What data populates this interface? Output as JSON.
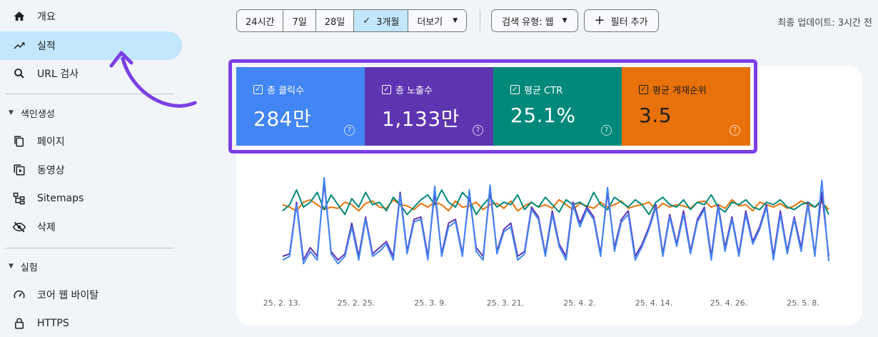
{
  "sidebar": {
    "items": [
      {
        "label": "개요",
        "icon": "home-icon"
      },
      {
        "label": "실적",
        "icon": "trending-up-icon"
      },
      {
        "label": "URL 검사",
        "icon": "search-icon"
      }
    ],
    "sections": [
      {
        "title": "색인생성",
        "items": [
          {
            "label": "페이지",
            "icon": "pages-icon"
          },
          {
            "label": "동영상",
            "icon": "video-icon"
          },
          {
            "label": "Sitemaps",
            "icon": "sitemap-icon"
          },
          {
            "label": "삭제",
            "icon": "visibility-off-icon"
          }
        ]
      },
      {
        "title": "실험",
        "items": [
          {
            "label": "코어 웹 바이탈",
            "icon": "speed-icon"
          },
          {
            "label": "HTTPS",
            "icon": "lock-icon"
          }
        ]
      }
    ]
  },
  "toolbar": {
    "ranges": [
      "24시간",
      "7일",
      "28일",
      "3개월"
    ],
    "selected_range": "3개월",
    "more": "더보기",
    "search_type": "검색 유형: 웹",
    "add_filter": "필터 추가",
    "updated": "최종 업데이트: 3시간 전"
  },
  "metrics": [
    {
      "label": "총 클릭수",
      "value": "284만",
      "color": "#4285f4"
    },
    {
      "label": "총 노출수",
      "value": "1,133만",
      "color": "#5e35b1"
    },
    {
      "label": "평균 CTR",
      "value": "25.1%",
      "color": "#00897b"
    },
    {
      "label": "평균 게재순위",
      "value": "3.5",
      "color": "#e8710a"
    }
  ],
  "colors": {
    "highlight": "#7b3fe4",
    "arrow": "#7b3fe4",
    "active_nav": "#c2e7ff"
  },
  "chart_data": {
    "type": "line",
    "x_labels": [
      "25. 2. 13.",
      "25. 2. 25.",
      "25. 3. 9.",
      "25. 3. 21.",
      "25. 4. 2.",
      "25. 4. 14.",
      "25. 4. 26.",
      "25. 5. 8."
    ],
    "series": [
      {
        "color": "#e8710a",
        "values": [
          60,
          58,
          55,
          62,
          64,
          60,
          56,
          58,
          57,
          62,
          60,
          55,
          61,
          63,
          58,
          57,
          64,
          60,
          59,
          56,
          61,
          58,
          62,
          60,
          55,
          63,
          58,
          59,
          62,
          56,
          60,
          61,
          57,
          63,
          55,
          59,
          62,
          58,
          60,
          57,
          64,
          60,
          56,
          61,
          59,
          57,
          62,
          58,
          60,
          63,
          57,
          59,
          60,
          62,
          56,
          61,
          58,
          60,
          59,
          57,
          62,
          63,
          58,
          60,
          57,
          64,
          59,
          60,
          55,
          62,
          60,
          58,
          61,
          57,
          59,
          63,
          60,
          58,
          62,
          56
        ]
      },
      {
        "color": "#00897b",
        "values": [
          55,
          60,
          72,
          58,
          62,
          70,
          56,
          68,
          60,
          52,
          65,
          58,
          70,
          60,
          62,
          55,
          66,
          60,
          52,
          58,
          64,
          68,
          60,
          72,
          62,
          58,
          70,
          64,
          52,
          60,
          66,
          58,
          62,
          60,
          68,
          56,
          62,
          58,
          66,
          60,
          54,
          64,
          60,
          62,
          58,
          70,
          60,
          56,
          66,
          62,
          58,
          64,
          60,
          52,
          62,
          66,
          60,
          58,
          64,
          56,
          62,
          60,
          68,
          58,
          54,
          62,
          60,
          64,
          58,
          56,
          62,
          60,
          64,
          58,
          56,
          60,
          62,
          58,
          64,
          52
        ]
      },
      {
        "color": "#5e35b1",
        "values": [
          18,
          20,
          62,
          15,
          25,
          18,
          78,
          22,
          15,
          20,
          45,
          18,
          50,
          20,
          25,
          30,
          18,
          70,
          22,
          48,
          50,
          18,
          70,
          20,
          45,
          48,
          20,
          68,
          25,
          18,
          72,
          22,
          40,
          45,
          18,
          22,
          58,
          50,
          20,
          55,
          28,
          18,
          62,
          45,
          58,
          50,
          20,
          70,
          25,
          48,
          55,
          18,
          28,
          42,
          60,
          20,
          52,
          28,
          55,
          22,
          48,
          58,
          18,
          60,
          25,
          50,
          20,
          55,
          30,
          42,
          60,
          18,
          55,
          22,
          50,
          25,
          62,
          20,
          70,
          18
        ]
      },
      {
        "color": "#4285f4",
        "values": [
          15,
          18,
          60,
          12,
          22,
          15,
          82,
          20,
          12,
          18,
          42,
          15,
          48,
          18,
          22,
          28,
          15,
          68,
          20,
          46,
          48,
          15,
          75,
          18,
          42,
          46,
          18,
          72,
          22,
          15,
          76,
          20,
          38,
          42,
          15,
          20,
          56,
          48,
          18,
          52,
          26,
          15,
          60,
          42,
          56,
          48,
          18,
          74,
          22,
          46,
          52,
          15,
          26,
          40,
          58,
          18,
          50,
          26,
          52,
          20,
          46,
          56,
          15,
          58,
          22,
          48,
          18,
          52,
          28,
          40,
          58,
          15,
          52,
          20,
          48,
          22,
          60,
          18,
          80,
          14
        ]
      }
    ]
  }
}
